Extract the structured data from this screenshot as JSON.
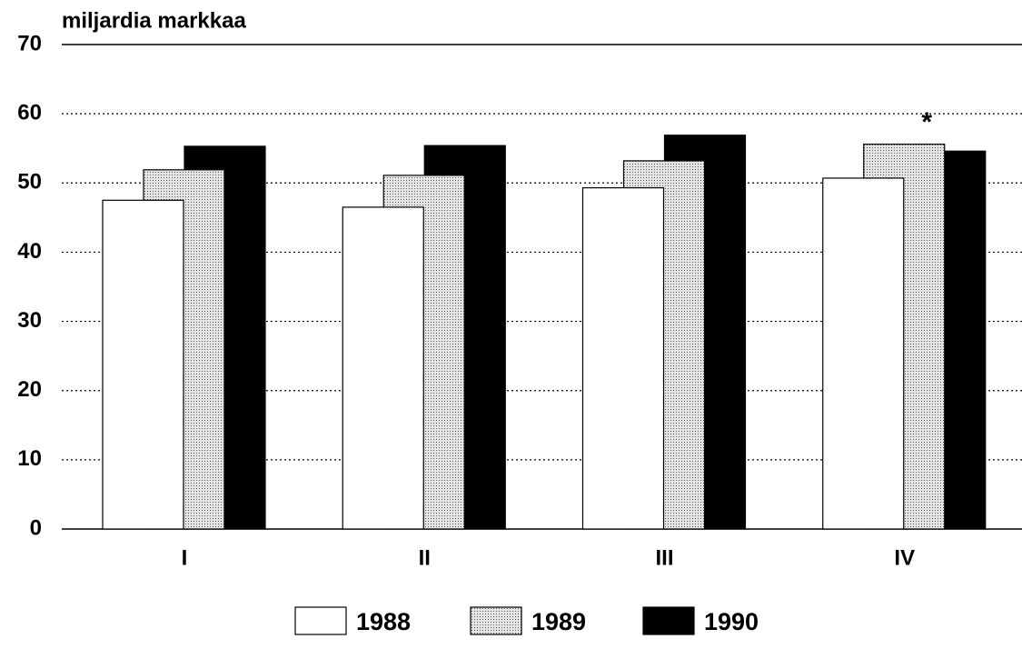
{
  "chart_data": {
    "type": "bar",
    "y_label": "miljardia markkaa",
    "categories": [
      "I",
      "II",
      "III",
      "IV"
    ],
    "series": [
      {
        "name": "1988",
        "color": "#ffffff",
        "values": [
          47.5,
          46.5,
          49.3,
          50.7
        ]
      },
      {
        "name": "1989",
        "color": "#c8c8c8",
        "values": [
          51.9,
          51.1,
          53.2,
          55.6
        ]
      },
      {
        "name": "1990",
        "color": "#000000",
        "values": [
          55.3,
          55.4,
          56.9,
          54.6
        ]
      }
    ],
    "annotation": "*",
    "ylim": [
      0,
      70
    ],
    "yticks": [
      0,
      10,
      20,
      30,
      40,
      50,
      60,
      70
    ],
    "grid": true,
    "legend": "bottom"
  }
}
